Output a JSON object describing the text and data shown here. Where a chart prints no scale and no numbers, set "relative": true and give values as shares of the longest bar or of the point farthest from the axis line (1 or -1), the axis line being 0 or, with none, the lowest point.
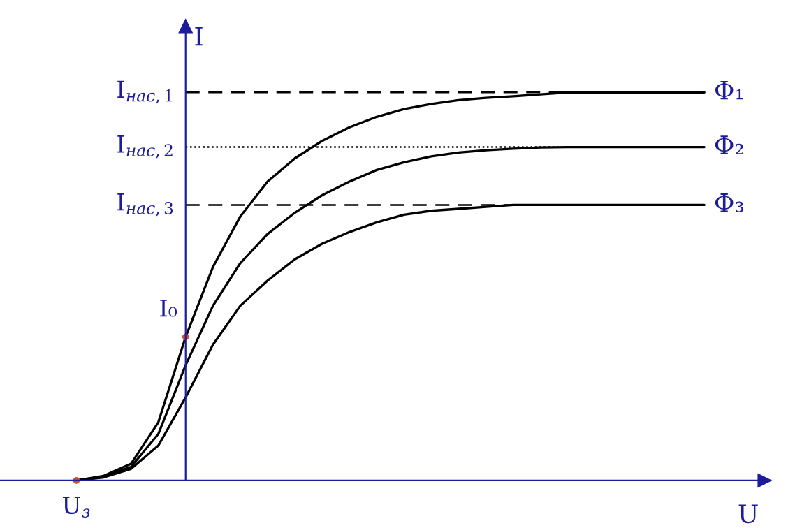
{
  "chart_data": {
    "type": "line",
    "relative": true,
    "xlabel": "U",
    "ylabel": "I",
    "categories": [
      null,
      null,
      null,
      null,
      null,
      null,
      null,
      null,
      null,
      null,
      null,
      null,
      null,
      null,
      null,
      null,
      null,
      null,
      null,
      null,
      null,
      null,
      null,
      null
    ],
    "series": [
      {
        "name": "Φ₁",
        "color": "#000000",
        "values": [
          0,
          0.012,
          0.043,
          0.15,
          0.37,
          0.55,
          0.68,
          0.77,
          0.83,
          0.875,
          0.91,
          0.937,
          0.957,
          0.97,
          0.98,
          0.986,
          0.99,
          0.995,
          1,
          1,
          1,
          1,
          1,
          1
        ]
      },
      {
        "name": "Φ₂",
        "color": "#000000",
        "values": [
          0,
          0.01,
          0.035,
          0.12,
          0.297,
          0.45,
          0.56,
          0.635,
          0.69,
          0.735,
          0.77,
          0.8,
          0.82,
          0.835,
          0.845,
          0.851,
          0.855,
          0.858,
          0.859,
          0.859,
          0.859,
          0.859,
          0.859,
          0.859
        ]
      },
      {
        "name": "Φ₃",
        "color": "#000000",
        "values": [
          0,
          0.008,
          0.03,
          0.09,
          0.214,
          0.35,
          0.45,
          0.515,
          0.57,
          0.61,
          0.64,
          0.665,
          0.685,
          0.695,
          0.7,
          0.705,
          0.71,
          0.71,
          0.71,
          0.71,
          0.71,
          0.71,
          0.71,
          0.71
        ]
      }
    ],
    "ref_lines": [
      {
        "axis": "y",
        "value": 1,
        "label": "I$_{нас,1}$",
        "line_style": "dashed",
        "color": "#000000"
      },
      {
        "axis": "y",
        "value": 0.859,
        "label": "I$_{нас,2}$",
        "line_style": "dotted",
        "color": "#000000"
      },
      {
        "axis": "y",
        "value": 0.71,
        "label": "I$_{нас,3}$",
        "line_style": "dashed",
        "color": "#000000"
      }
    ],
    "annotations": [
      "I₀",
      "U$_{з}$"
    ],
    "legend": false,
    "marker": "none",
    "line_style": "solid"
  }
}
